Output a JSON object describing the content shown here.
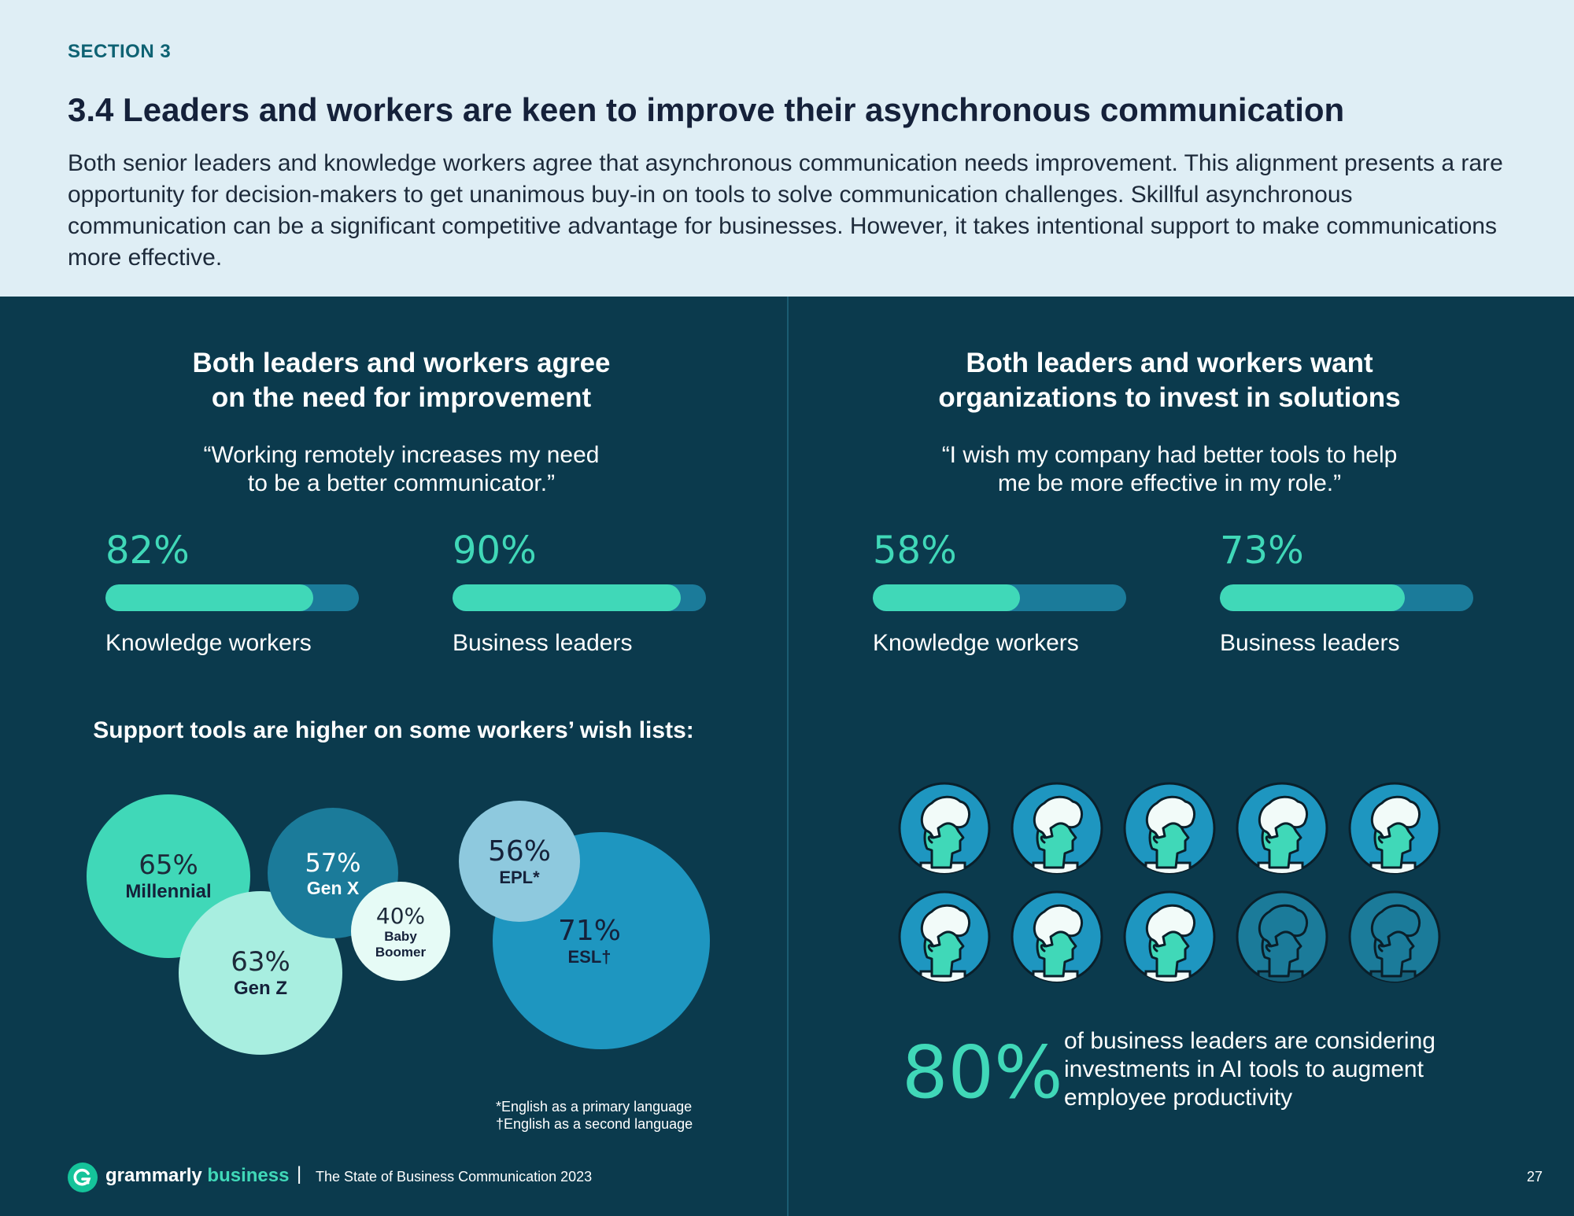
{
  "header": {
    "section_label": "SECTION 3",
    "title": "3.4 Leaders and workers are keen to improve their asynchronous communication",
    "intro": "Both senior leaders and knowledge workers agree that asynchronous communication needs improvement. This alignment presents a rare opportunity for decision-makers to get unanimous buy-in on tools to solve communication challenges. Skillful asynchronous communication can be a significant competitive advantage for businesses. However, it takes intentional support to make communications more effective."
  },
  "left": {
    "heading_line1": "Both leaders and workers agree",
    "heading_line2": "on the need for improvement",
    "quote_line1": "“Working remotely increases my need",
    "quote_line2": "to be a better communicator.”",
    "stats": [
      {
        "pct": "82%",
        "value": 0.82,
        "label": "Knowledge workers"
      },
      {
        "pct": "90%",
        "value": 0.9,
        "label": "Business leaders"
      }
    ],
    "wishlist_heading": "Support tools are higher on some workers’ wish lists:",
    "bubbles": [
      {
        "pct": "65%",
        "label": "Millennial",
        "color": "#40d8b8"
      },
      {
        "pct": "63%",
        "label": "Gen Z",
        "color": "#a8eee0"
      },
      {
        "pct": "57%",
        "label": "Gen X",
        "color": "#1b7b9a"
      },
      {
        "pct": "40%",
        "label_line1": "Baby",
        "label_line2": "Boomer",
        "color": "#e6fbf6"
      },
      {
        "pct": "71%",
        "label": "ESL†",
        "color": "#1e96c0"
      },
      {
        "pct": "56%",
        "label": "EPL*",
        "color": "#8ec9de"
      }
    ],
    "footnote1": "*English as a primary language",
    "footnote2": "†English as a second language"
  },
  "right": {
    "heading_line1": "Both leaders and workers want",
    "heading_line2": "organizations to invest in solutions",
    "quote_line1": "“I wish my company had better tools to help",
    "quote_line2": "me be more effective in my role.”",
    "stats": [
      {
        "pct": "58%",
        "value": 0.58,
        "label": "Knowledge workers"
      },
      {
        "pct": "73%",
        "value": 0.73,
        "label": "Business leaders"
      }
    ],
    "people": {
      "total": 10,
      "highlighted": 8,
      "icon": "person-head-icon"
    },
    "big_stat": "80%",
    "big_stat_text": "of business leaders are considering investments in AI tools to augment employee productivity"
  },
  "footer": {
    "logo_icon": "grammarly-g-icon",
    "brand_name": "grammarly",
    "brand_suffix": "business",
    "separator": "|",
    "report_name": "The State of Business Communication 2023",
    "page_number": "27"
  },
  "colors": {
    "background": "#0b3a4d",
    "header_bg": "#dfeef5",
    "accent": "#40d8b8",
    "bar_track": "#1b7b9a"
  }
}
